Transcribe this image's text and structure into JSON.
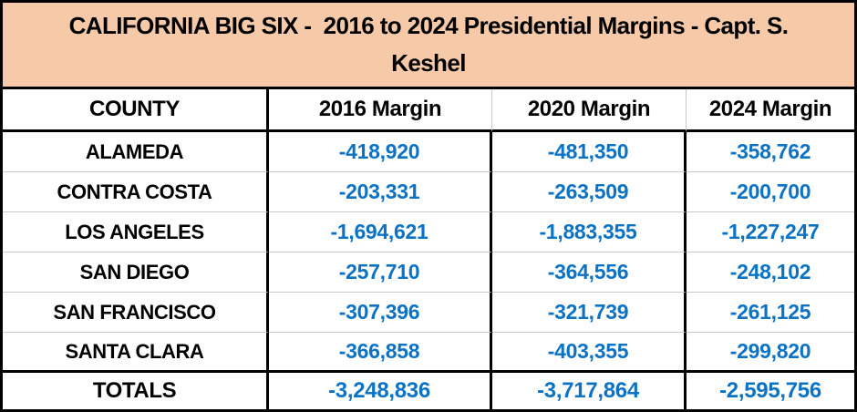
{
  "title": {
    "line1": "CALIFORNIA BIG SIX -  2016 to 2024 Presidential Margins - Capt. S.",
    "line2": "Keshel"
  },
  "columns": [
    "COUNTY",
    "2016 Margin",
    "2020 Margin",
    "2024 Margin"
  ],
  "rows": [
    {
      "county": "ALAMEDA",
      "m2016": "-418,920",
      "m2020": "-481,350",
      "m2024": "-358,762"
    },
    {
      "county": "CONTRA COSTA",
      "m2016": "-203,331",
      "m2020": "-263,509",
      "m2024": "-200,700"
    },
    {
      "county": "LOS ANGELES",
      "m2016": "-1,694,621",
      "m2020": "-1,883,355",
      "m2024": "-1,227,247"
    },
    {
      "county": "SAN DIEGO",
      "m2016": "-257,710",
      "m2020": "-364,556",
      "m2024": "-248,102"
    },
    {
      "county": "SAN FRANCISCO",
      "m2016": "-307,396",
      "m2020": "-321,739",
      "m2024": "-261,125"
    },
    {
      "county": "SANTA CLARA",
      "m2016": "-366,858",
      "m2020": "-403,355",
      "m2024": "-299,820"
    }
  ],
  "totals": {
    "label": "TOTALS",
    "m2016": "-3,248,836",
    "m2020": "-3,717,864",
    "m2024": "-2,595,756"
  },
  "colors": {
    "title_bg": "#F6C9A8",
    "value_text": "#0C72C4",
    "grid_thick": "#000000",
    "grid_thin": "#C9C9C9",
    "header_text": "#000000"
  },
  "chart_data": {
    "type": "table",
    "title": "CALIFORNIA BIG SIX -  2016 to 2024 Presidential Margins - Capt. S. Keshel",
    "categories": [
      "ALAMEDA",
      "CONTRA COSTA",
      "LOS ANGELES",
      "SAN DIEGO",
      "SAN FRANCISCO",
      "SANTA CLARA"
    ],
    "series": [
      {
        "name": "2016 Margin",
        "values": [
          -418920,
          -203331,
          -1694621,
          -257710,
          -307396,
          -366858
        ],
        "total": -3248836
      },
      {
        "name": "2020 Margin",
        "values": [
          -481350,
          -263509,
          -1883355,
          -364556,
          -321739,
          -403355
        ],
        "total": -3717864
      },
      {
        "name": "2024 Margin",
        "values": [
          -358762,
          -200700,
          -1227247,
          -248102,
          -261125,
          -299820
        ],
        "total": -2595756
      }
    ],
    "layout": {
      "totals_row_label": "TOTALS",
      "grid": true,
      "value_color": "#0C72C4",
      "title_bg": "#F6C9A8"
    }
  }
}
